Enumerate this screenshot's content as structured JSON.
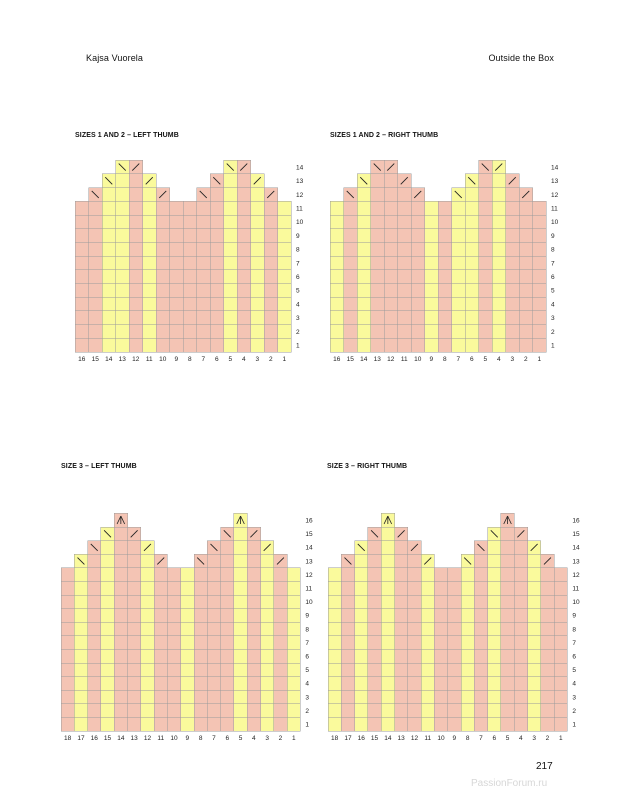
{
  "header": {
    "left": "Kajsa Vuorela",
    "right": "Outside the Box"
  },
  "page_number": "217",
  "watermark": "PassionForum.ru",
  "colors": {
    "pink": "#f4c4b4",
    "yellow": "#fafa9c",
    "grid": "#9b9b9b",
    "decrease": "#222222"
  },
  "chart_data": [
    {
      "type": "table",
      "title": "SIZES 1 AND 2 – LEFT THUMB",
      "columns": [
        16,
        15,
        14,
        13,
        12,
        11,
        10,
        9,
        8,
        7,
        6,
        5,
        4,
        3,
        2,
        1
      ],
      "rows": [
        1,
        2,
        3,
        4,
        5,
        6,
        7,
        8,
        9,
        10,
        11,
        12,
        13,
        14
      ],
      "column_colors": [
        "pink",
        "pink",
        "yellow",
        "yellow",
        "pink",
        "yellow",
        "pink",
        "pink",
        "pink",
        "pink",
        "pink",
        "yellow",
        "pink",
        "yellow",
        "pink",
        "yellow"
      ],
      "column_heights": [
        11,
        12,
        13,
        14,
        14,
        13,
        12,
        11,
        11,
        12,
        13,
        14,
        14,
        13,
        12,
        11
      ],
      "symbols": [
        {
          "col": 15,
          "row": 12,
          "symbol": "right-slant"
        },
        {
          "col": 14,
          "row": 13,
          "symbol": "right-slant"
        },
        {
          "col": 13,
          "row": 14,
          "symbol": "right-slant"
        },
        {
          "col": 12,
          "row": 14,
          "symbol": "left-slant"
        },
        {
          "col": 11,
          "row": 13,
          "symbol": "left-slant"
        },
        {
          "col": 10,
          "row": 12,
          "symbol": "left-slant"
        },
        {
          "col": 7,
          "row": 12,
          "symbol": "right-slant"
        },
        {
          "col": 6,
          "row": 13,
          "symbol": "right-slant"
        },
        {
          "col": 5,
          "row": 14,
          "symbol": "right-slant"
        },
        {
          "col": 4,
          "row": 14,
          "symbol": "left-slant"
        },
        {
          "col": 3,
          "row": 13,
          "symbol": "left-slant"
        },
        {
          "col": 2,
          "row": 12,
          "symbol": "left-slant"
        }
      ]
    },
    {
      "type": "table",
      "title": "SIZES 1 AND 2 – RIGHT THUMB",
      "columns": [
        16,
        15,
        14,
        13,
        12,
        11,
        10,
        9,
        8,
        7,
        6,
        5,
        4,
        3,
        2,
        1
      ],
      "rows": [
        1,
        2,
        3,
        4,
        5,
        6,
        7,
        8,
        9,
        10,
        11,
        12,
        13,
        14
      ],
      "column_colors": [
        "yellow",
        "pink",
        "yellow",
        "pink",
        "pink",
        "pink",
        "pink",
        "yellow",
        "pink",
        "yellow",
        "yellow",
        "pink",
        "yellow",
        "pink",
        "pink",
        "pink"
      ],
      "column_heights": [
        11,
        12,
        13,
        14,
        14,
        13,
        12,
        11,
        11,
        12,
        13,
        14,
        14,
        13,
        12,
        11
      ],
      "symbols": [
        {
          "col": 15,
          "row": 12,
          "symbol": "right-slant"
        },
        {
          "col": 14,
          "row": 13,
          "symbol": "right-slant"
        },
        {
          "col": 13,
          "row": 14,
          "symbol": "right-slant"
        },
        {
          "col": 12,
          "row": 14,
          "symbol": "left-slant"
        },
        {
          "col": 11,
          "row": 13,
          "symbol": "left-slant"
        },
        {
          "col": 10,
          "row": 12,
          "symbol": "left-slant"
        },
        {
          "col": 7,
          "row": 12,
          "symbol": "right-slant"
        },
        {
          "col": 6,
          "row": 13,
          "symbol": "right-slant"
        },
        {
          "col": 5,
          "row": 14,
          "symbol": "right-slant"
        },
        {
          "col": 4,
          "row": 14,
          "symbol": "left-slant"
        },
        {
          "col": 3,
          "row": 13,
          "symbol": "left-slant"
        },
        {
          "col": 2,
          "row": 12,
          "symbol": "left-slant"
        }
      ]
    },
    {
      "type": "table",
      "title": "SIZE 3 – LEFT THUMB",
      "columns": [
        18,
        17,
        16,
        15,
        14,
        13,
        12,
        11,
        10,
        9,
        8,
        7,
        6,
        5,
        4,
        3,
        2,
        1
      ],
      "rows": [
        1,
        2,
        3,
        4,
        5,
        6,
        7,
        8,
        9,
        10,
        11,
        12,
        13,
        14,
        15,
        16
      ],
      "column_colors": [
        "pink",
        "yellow",
        "pink",
        "yellow",
        "pink",
        "pink",
        "yellow",
        "pink",
        "pink",
        "yellow",
        "pink",
        "pink",
        "pink",
        "yellow",
        "pink",
        "yellow",
        "pink",
        "yellow"
      ],
      "column_heights": [
        12,
        13,
        14,
        15,
        16,
        15,
        14,
        13,
        12,
        12,
        13,
        14,
        15,
        16,
        15,
        14,
        13,
        12
      ],
      "symbols": [
        {
          "col": 17,
          "row": 13,
          "symbol": "right-slant"
        },
        {
          "col": 16,
          "row": 14,
          "symbol": "right-slant"
        },
        {
          "col": 15,
          "row": 15,
          "symbol": "right-slant"
        },
        {
          "col": 14,
          "row": 16,
          "symbol": "double-decrease"
        },
        {
          "col": 13,
          "row": 15,
          "symbol": "left-slant"
        },
        {
          "col": 12,
          "row": 14,
          "symbol": "left-slant"
        },
        {
          "col": 11,
          "row": 13,
          "symbol": "left-slant"
        },
        {
          "col": 8,
          "row": 13,
          "symbol": "right-slant"
        },
        {
          "col": 7,
          "row": 14,
          "symbol": "right-slant"
        },
        {
          "col": 6,
          "row": 15,
          "symbol": "right-slant"
        },
        {
          "col": 5,
          "row": 16,
          "symbol": "double-decrease"
        },
        {
          "col": 4,
          "row": 15,
          "symbol": "left-slant"
        },
        {
          "col": 3,
          "row": 14,
          "symbol": "left-slant"
        },
        {
          "col": 2,
          "row": 13,
          "symbol": "left-slant"
        }
      ]
    },
    {
      "type": "table",
      "title": "SIZE 3 – RIGHT THUMB",
      "columns": [
        18,
        17,
        16,
        15,
        14,
        13,
        12,
        11,
        10,
        9,
        8,
        7,
        6,
        5,
        4,
        3,
        2,
        1
      ],
      "rows": [
        1,
        2,
        3,
        4,
        5,
        6,
        7,
        8,
        9,
        10,
        11,
        12,
        13,
        14,
        15,
        16
      ],
      "column_colors": [
        "yellow",
        "pink",
        "yellow",
        "pink",
        "yellow",
        "pink",
        "pink",
        "yellow",
        "pink",
        "pink",
        "yellow",
        "pink",
        "yellow",
        "pink",
        "pink",
        "yellow",
        "pink",
        "pink"
      ],
      "column_heights": [
        12,
        13,
        14,
        15,
        16,
        15,
        14,
        13,
        12,
        12,
        13,
        14,
        15,
        16,
        15,
        14,
        13,
        12
      ],
      "symbols": [
        {
          "col": 17,
          "row": 13,
          "symbol": "right-slant"
        },
        {
          "col": 16,
          "row": 14,
          "symbol": "right-slant"
        },
        {
          "col": 15,
          "row": 15,
          "symbol": "right-slant"
        },
        {
          "col": 14,
          "row": 16,
          "symbol": "double-decrease"
        },
        {
          "col": 13,
          "row": 15,
          "symbol": "left-slant"
        },
        {
          "col": 12,
          "row": 14,
          "symbol": "left-slant"
        },
        {
          "col": 11,
          "row": 13,
          "symbol": "left-slant"
        },
        {
          "col": 8,
          "row": 13,
          "symbol": "right-slant"
        },
        {
          "col": 7,
          "row": 14,
          "symbol": "right-slant"
        },
        {
          "col": 6,
          "row": 15,
          "symbol": "right-slant"
        },
        {
          "col": 5,
          "row": 16,
          "symbol": "double-decrease"
        },
        {
          "col": 4,
          "row": 15,
          "symbol": "left-slant"
        },
        {
          "col": 3,
          "row": 14,
          "symbol": "left-slant"
        },
        {
          "col": 2,
          "row": 13,
          "symbol": "left-slant"
        }
      ]
    }
  ]
}
